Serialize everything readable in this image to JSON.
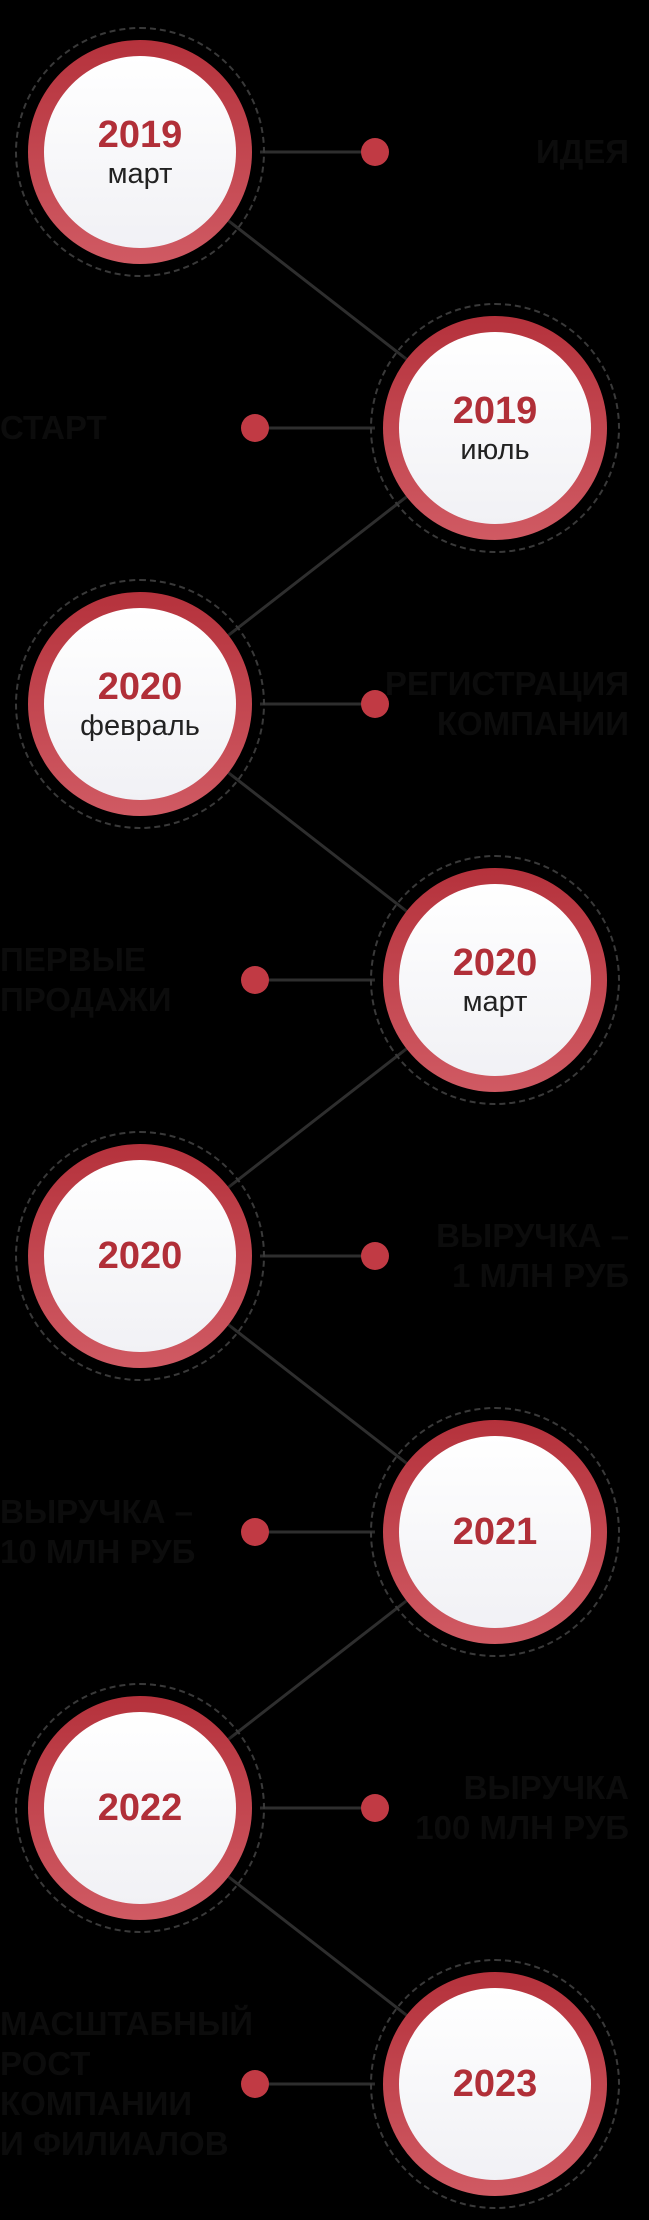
{
  "timeline": {
    "colors": {
      "ring": "#c13a44",
      "year_text": "#b12f38",
      "month_text": "#222222",
      "background": "#000000",
      "connector": "#2e2e2e"
    },
    "events": [
      {
        "year": "2019",
        "month": "март",
        "side": "left",
        "text": "идея"
      },
      {
        "year": "2019",
        "month": "июль",
        "side": "right",
        "text": "старт"
      },
      {
        "year": "2020",
        "month": "февраль",
        "side": "left",
        "text": "регистрация\nкомпании"
      },
      {
        "year": "2020",
        "month": "март",
        "side": "right",
        "text": "первые\nпродажи"
      },
      {
        "year": "2020",
        "month": "",
        "side": "left",
        "text": "выручка –\n1 млн руб"
      },
      {
        "year": "2021",
        "month": "",
        "side": "right",
        "text": "выручка –\n10 млн руб"
      },
      {
        "year": "2022",
        "month": "",
        "side": "left",
        "text": "выручка\n100 млн руб"
      },
      {
        "year": "2023",
        "month": "",
        "side": "right",
        "text": "масштабный\nрост\nкомпании\nи филиалов"
      }
    ]
  }
}
